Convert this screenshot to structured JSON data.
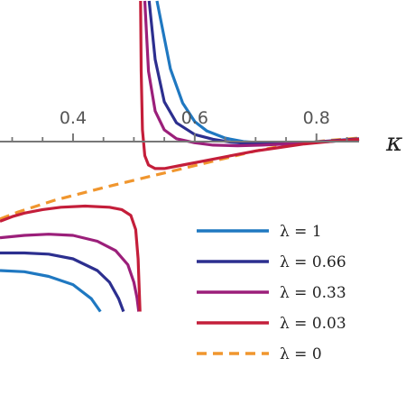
{
  "chart_data": {
    "type": "line",
    "xlabel": "κ",
    "ylabel": "",
    "title": "",
    "xlim": [
      0.28,
      0.87
    ],
    "ylim": [
      -1.45,
      1.2
    ],
    "x_ticks": [
      {
        "value": 0.4,
        "label": "0.4"
      },
      {
        "value": 0.6,
        "label": "0.6"
      },
      {
        "value": 0.8,
        "label": "0.8"
      }
    ],
    "x_minor_ticks": [
      0.3,
      0.35,
      0.45,
      0.5,
      0.55,
      0.65,
      0.7,
      0.75,
      0.85
    ],
    "legend_position": "bottom-right",
    "series": [
      {
        "name": "λ = 1",
        "color": "#1f78c1",
        "dashed": false,
        "branches": [
          [
            [
              0.538,
              1.2
            ],
            [
              0.56,
              0.62
            ],
            [
              0.58,
              0.33
            ],
            [
              0.6,
              0.17
            ],
            [
              0.62,
              0.09
            ],
            [
              0.65,
              0.03
            ],
            [
              0.68,
              0.0
            ],
            [
              0.72,
              -0.015
            ],
            [
              0.75,
              -0.015
            ],
            [
              0.78,
              -0.01
            ],
            [
              0.82,
              0.0
            ],
            [
              0.87,
              0.02
            ]
          ],
          [
            [
              0.28,
              -1.1
            ],
            [
              0.32,
              -1.11
            ],
            [
              0.36,
              -1.15
            ],
            [
              0.4,
              -1.22
            ],
            [
              0.43,
              -1.34
            ],
            [
              0.445,
              -1.45
            ]
          ]
        ]
      },
      {
        "name": "λ = 0.66",
        "color": "#2c2f8f",
        "dashed": false,
        "branches": [
          [
            [
              0.525,
              1.2
            ],
            [
              0.535,
              0.7
            ],
            [
              0.55,
              0.34
            ],
            [
              0.57,
              0.16
            ],
            [
              0.6,
              0.06
            ],
            [
              0.63,
              0.02
            ],
            [
              0.66,
              -0.005
            ],
            [
              0.7,
              -0.02
            ],
            [
              0.74,
              -0.02
            ],
            [
              0.78,
              -0.01
            ],
            [
              0.82,
              0.005
            ],
            [
              0.87,
              0.025
            ]
          ],
          [
            [
              0.28,
              -0.95
            ],
            [
              0.32,
              -0.95
            ],
            [
              0.36,
              -0.96
            ],
            [
              0.4,
              -1.0
            ],
            [
              0.44,
              -1.1
            ],
            [
              0.46,
              -1.2
            ],
            [
              0.475,
              -1.34
            ],
            [
              0.483,
              -1.45
            ]
          ]
        ]
      },
      {
        "name": "λ = 0.33",
        "color": "#9b1f7a",
        "dashed": false,
        "branches": [
          [
            [
              0.518,
              1.2
            ],
            [
              0.524,
              0.6
            ],
            [
              0.535,
              0.26
            ],
            [
              0.55,
              0.1
            ],
            [
              0.57,
              0.025
            ],
            [
              0.6,
              -0.01
            ],
            [
              0.63,
              -0.03
            ],
            [
              0.67,
              -0.035
            ],
            [
              0.71,
              -0.03
            ],
            [
              0.75,
              -0.02
            ],
            [
              0.8,
              -0.005
            ],
            [
              0.87,
              0.02
            ]
          ],
          [
            [
              0.28,
              -0.82
            ],
            [
              0.32,
              -0.8
            ],
            [
              0.36,
              -0.79
            ],
            [
              0.4,
              -0.8
            ],
            [
              0.44,
              -0.85
            ],
            [
              0.47,
              -0.93
            ],
            [
              0.49,
              -1.05
            ],
            [
              0.5,
              -1.2
            ],
            [
              0.505,
              -1.33
            ],
            [
              0.508,
              -1.45
            ]
          ]
        ]
      },
      {
        "name": "λ = 0.03",
        "color": "#c41e3a",
        "dashed": false,
        "branches": [
          [
            [
              0.511,
              1.2
            ],
            [
              0.512,
              0.6
            ],
            [
              0.514,
              0.1
            ],
            [
              0.518,
              -0.12
            ],
            [
              0.524,
              -0.2
            ],
            [
              0.535,
              -0.23
            ],
            [
              0.55,
              -0.23
            ],
            [
              0.58,
              -0.2
            ],
            [
              0.62,
              -0.16
            ],
            [
              0.66,
              -0.12
            ],
            [
              0.7,
              -0.08
            ],
            [
              0.74,
              -0.05
            ],
            [
              0.78,
              -0.02
            ],
            [
              0.82,
              0.0
            ],
            [
              0.87,
              0.02
            ]
          ],
          [
            [
              0.28,
              -0.68
            ],
            [
              0.3,
              -0.64
            ],
            [
              0.32,
              -0.61
            ],
            [
              0.35,
              -0.58
            ],
            [
              0.38,
              -0.56
            ],
            [
              0.42,
              -0.55
            ],
            [
              0.46,
              -0.56
            ],
            [
              0.48,
              -0.58
            ],
            [
              0.495,
              -0.63
            ],
            [
              0.503,
              -0.75
            ],
            [
              0.507,
              -1.0
            ],
            [
              0.51,
              -1.45
            ]
          ]
        ]
      },
      {
        "name": "λ = 0",
        "color": "#f0962e",
        "dashed": true,
        "branches": [
          [
            [
              0.28,
              -0.66
            ],
            [
              0.31,
              -0.6
            ],
            [
              0.34,
              -0.55
            ],
            [
              0.37,
              -0.5
            ],
            [
              0.4,
              -0.46
            ],
            [
              0.43,
              -0.42
            ],
            [
              0.46,
              -0.38
            ],
            [
              0.5,
              -0.33
            ],
            [
              0.54,
              -0.28
            ],
            [
              0.58,
              -0.23
            ],
            [
              0.62,
              -0.18
            ],
            [
              0.66,
              -0.13
            ],
            [
              0.7,
              -0.08
            ],
            [
              0.74,
              -0.04
            ],
            [
              0.78,
              -0.01
            ],
            [
              0.82,
              0.01
            ],
            [
              0.87,
              0.03
            ]
          ]
        ]
      }
    ]
  }
}
